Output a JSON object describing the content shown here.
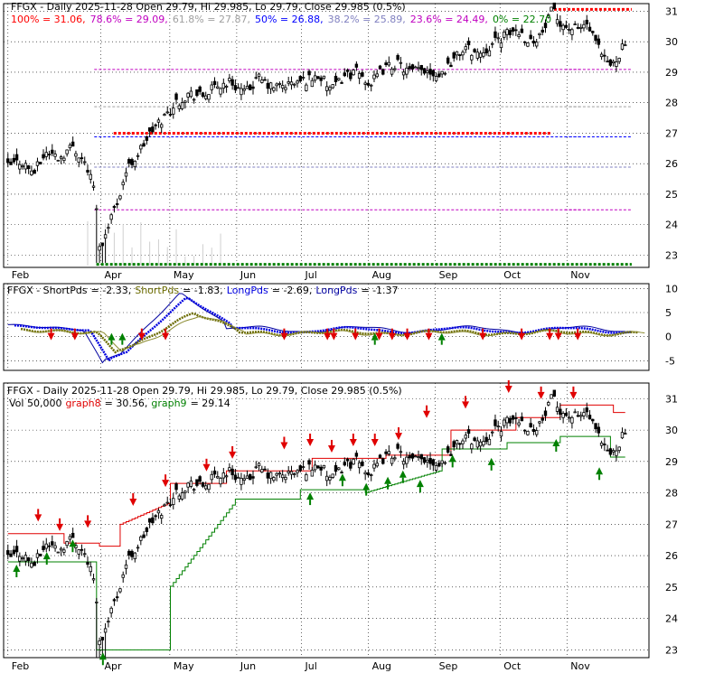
{
  "colors": {
    "c100": "#ff0000",
    "c786": "#c000c0",
    "c618": "#a0a0a0",
    "c50": "#0000ff",
    "c382": "#8080c0",
    "c236": "#c000c0",
    "c0": "#008000",
    "short1": "#6b6b00",
    "short2": "#8b8b30",
    "long1": "#0000e0",
    "long2": "#0000a0",
    "graph8": "#e00000",
    "graph9": "#008000",
    "arrowDown": "#e00000",
    "arrowUp": "#008000",
    "grid": "#000000",
    "frame": "#000000",
    "volume": "#d0d0d0"
  },
  "chart_data": [
    {
      "type": "candlestick",
      "panel": "price_fib",
      "title_parts": [
        {
          "text": "FFGX - Daily 2025-11-28 Open 29.79, Hi 29.985, Lo 29.79, Close 29.985 (0.5%)",
          "color": "#000000"
        }
      ],
      "legend_parts": [
        {
          "text": "100% = 31.06,",
          "color": "#ff0000"
        },
        {
          "text": "78.6% = 29.09,",
          "color": "#c000c0"
        },
        {
          "text": "61.8% = 27.87,",
          "color": "#a0a0a0"
        },
        {
          "text": "50% = 26.88,",
          "color": "#0000ff"
        },
        {
          "text": "38.2% = 25.89,",
          "color": "#8080c0"
        },
        {
          "text": "23.6% = 24.49,",
          "color": "#c000c0"
        },
        {
          "text": "0% = 22.70",
          "color": "#008000"
        }
      ],
      "x_labels": [
        "Feb",
        "Apr",
        "May",
        "Jun",
        "Jul",
        "Aug",
        "Sep",
        "Oct",
        "Nov"
      ],
      "x_label_days": [
        0,
        43,
        75,
        106,
        136,
        167,
        198,
        228,
        259
      ],
      "y_ticks": [
        23,
        24,
        25,
        26,
        27,
        28,
        29,
        30,
        31
      ],
      "ylim": [
        22.6,
        31.25
      ],
      "xlim": [
        -2,
        297
      ],
      "fib_levels": [
        {
          "pct": "100%",
          "value": 31.06,
          "color": "#ff0000",
          "style": "heavy"
        },
        {
          "pct": "78.6%",
          "value": 29.09,
          "color": "#c000c0",
          "style": "dash"
        },
        {
          "pct": "61.8%",
          "value": 27.87,
          "color": "#a0a0a0",
          "style": "dash"
        },
        {
          "pct": "50%",
          "value": 26.88,
          "color": "#0000ff",
          "style": "dash"
        },
        {
          "pct": "38.2%",
          "value": 25.89,
          "color": "#8080c0",
          "style": "dash"
        },
        {
          "pct": "23.6%",
          "value": 24.49,
          "color": "#c000c0",
          "style": "dash"
        },
        {
          "pct": "0%",
          "value": 22.7,
          "color": "#008000",
          "style": "heavy"
        }
      ],
      "grid": true
    },
    {
      "type": "line",
      "panel": "momentum",
      "title_parts": [
        {
          "text": "FFGX - ShortPds",
          "color": "#000000"
        },
        {
          "text": "= -2.33,",
          "color": "#000000"
        },
        {
          "text": "ShortPds",
          "color": "#6b6b00"
        },
        {
          "text": "= -1.83,",
          "color": "#000000"
        },
        {
          "text": "LongPds",
          "color": "#0000e0"
        },
        {
          "text": "= -2.69,",
          "color": "#000000"
        },
        {
          "text": "LongPds",
          "color": "#0000a0"
        },
        {
          "text": "= -1.37",
          "color": "#000000"
        }
      ],
      "y_ticks": [
        10,
        5,
        0,
        -5
      ],
      "ylim": [
        -7,
        11
      ],
      "series_names": [
        "ShortPds",
        "ShortPds",
        "LongPds",
        "LongPds"
      ],
      "grid": true
    },
    {
      "type": "candlestick",
      "panel": "price_stops",
      "title_parts": [
        {
          "text": "FFGX - Daily 2025-11-28 Open 29.79, Hi 29.985, Lo 29.79, Close 29.985 (0.5%)",
          "color": "#000000"
        }
      ],
      "legend_parts": [
        {
          "text": "Vol 50,000",
          "color": "#000000"
        },
        {
          "text": "graph8",
          "color": "#e00000"
        },
        {
          "text": "= 30.56,",
          "color": "#000000"
        },
        {
          "text": "graph9",
          "color": "#008000"
        },
        {
          "text": "= 29.14",
          "color": "#000000"
        }
      ],
      "x_labels": [
        "Feb",
        "Apr",
        "May",
        "Jun",
        "Jul",
        "Aug",
        "Sep",
        "Oct",
        "Nov"
      ],
      "y_ticks": [
        23,
        24,
        25,
        26,
        27,
        28,
        29,
        30,
        31
      ],
      "ylim": [
        22.75,
        31.5
      ],
      "grid": true
    }
  ]
}
